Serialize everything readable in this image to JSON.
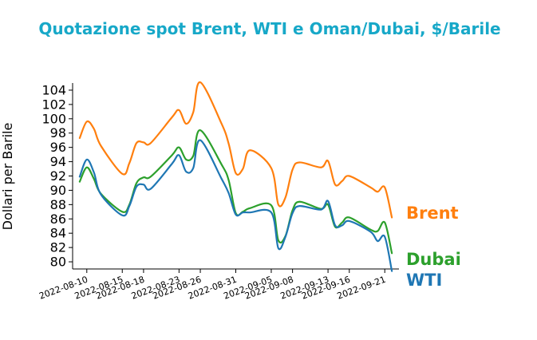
{
  "colors": {
    "title": "#17a8c8",
    "Brent": "#ff7f0e",
    "Dubai": "#2ca02c",
    "WTI": "#1f77b4"
  },
  "chart_data": {
    "type": "line",
    "title": "Quotazione spot Brent, WTI e Oman/Dubai, $/Barile",
    "xlabel": "",
    "ylabel": "Dollari per Barile",
    "ylim": [
      79,
      105
    ],
    "yticks": [
      80,
      82,
      84,
      86,
      88,
      90,
      92,
      94,
      96,
      98,
      100,
      102,
      104
    ],
    "xticks": [
      "2022-08-10",
      "2022-08-15",
      "2022-08-18",
      "2022-08-23",
      "2022-08-26",
      "2022-08-31",
      "2022-09-05",
      "2022-09-08",
      "2022-09-13",
      "2022-09-16",
      "2022-09-21"
    ],
    "grid": false,
    "legend": "inline labels at line ends (right)",
    "x": [
      "2022-08-09",
      "2022-08-10",
      "2022-08-11",
      "2022-08-12",
      "2022-08-15",
      "2022-08-16",
      "2022-08-17",
      "2022-08-18",
      "2022-08-19",
      "2022-08-22",
      "2022-08-23",
      "2022-08-24",
      "2022-08-25",
      "2022-08-26",
      "2022-08-29",
      "2022-08-30",
      "2022-08-31",
      "2022-09-01",
      "2022-09-02",
      "2022-09-05",
      "2022-09-06",
      "2022-09-07",
      "2022-09-08",
      "2022-09-09",
      "2022-09-12",
      "2022-09-13",
      "2022-09-14",
      "2022-09-15",
      "2022-09-16",
      "2022-09-19",
      "2022-09-20",
      "2022-09-21",
      "2022-09-22",
      "2022-09-23"
    ],
    "series": [
      {
        "name": "Brent",
        "label": "Brent",
        "values": [
          97.3,
          99.6,
          98.6,
          96.2,
          92.3,
          93.8,
          96.6,
          96.7,
          96.6,
          100.2,
          101.2,
          99.3,
          100.9,
          105.1,
          99.3,
          96.5,
          92.4,
          93.0,
          95.6,
          93.1,
          88.0,
          89.0,
          92.9,
          93.9,
          93.2,
          94.1,
          90.8,
          91.3,
          92.0,
          90.4,
          89.8,
          90.4,
          86.2,
          null
        ]
      },
      {
        "name": "Dubai",
        "label": "Dubai",
        "values": [
          91.2,
          93.2,
          91.6,
          89.5,
          87.0,
          88.0,
          91.0,
          91.8,
          91.9,
          94.9,
          96.0,
          94.3,
          94.8,
          98.4,
          93.6,
          91.4,
          86.8,
          87.0,
          87.5,
          87.9,
          83.0,
          83.6,
          87.2,
          88.4,
          87.4,
          88.0,
          84.9,
          85.5,
          86.2,
          84.5,
          84.3,
          85.5,
          81.2,
          null
        ]
      },
      {
        "name": "WTI",
        "label": "WTI",
        "values": [
          91.9,
          94.3,
          92.5,
          89.4,
          86.5,
          87.8,
          90.5,
          90.8,
          90.2,
          93.7,
          94.9,
          92.6,
          93.1,
          97.0,
          91.6,
          89.6,
          86.6,
          86.9,
          86.9,
          86.9,
          81.9,
          83.5,
          86.8,
          87.8,
          87.3,
          88.5,
          85.1,
          85.1,
          85.7,
          84.2,
          82.9,
          83.5,
          78.7,
          null
        ]
      }
    ]
  }
}
